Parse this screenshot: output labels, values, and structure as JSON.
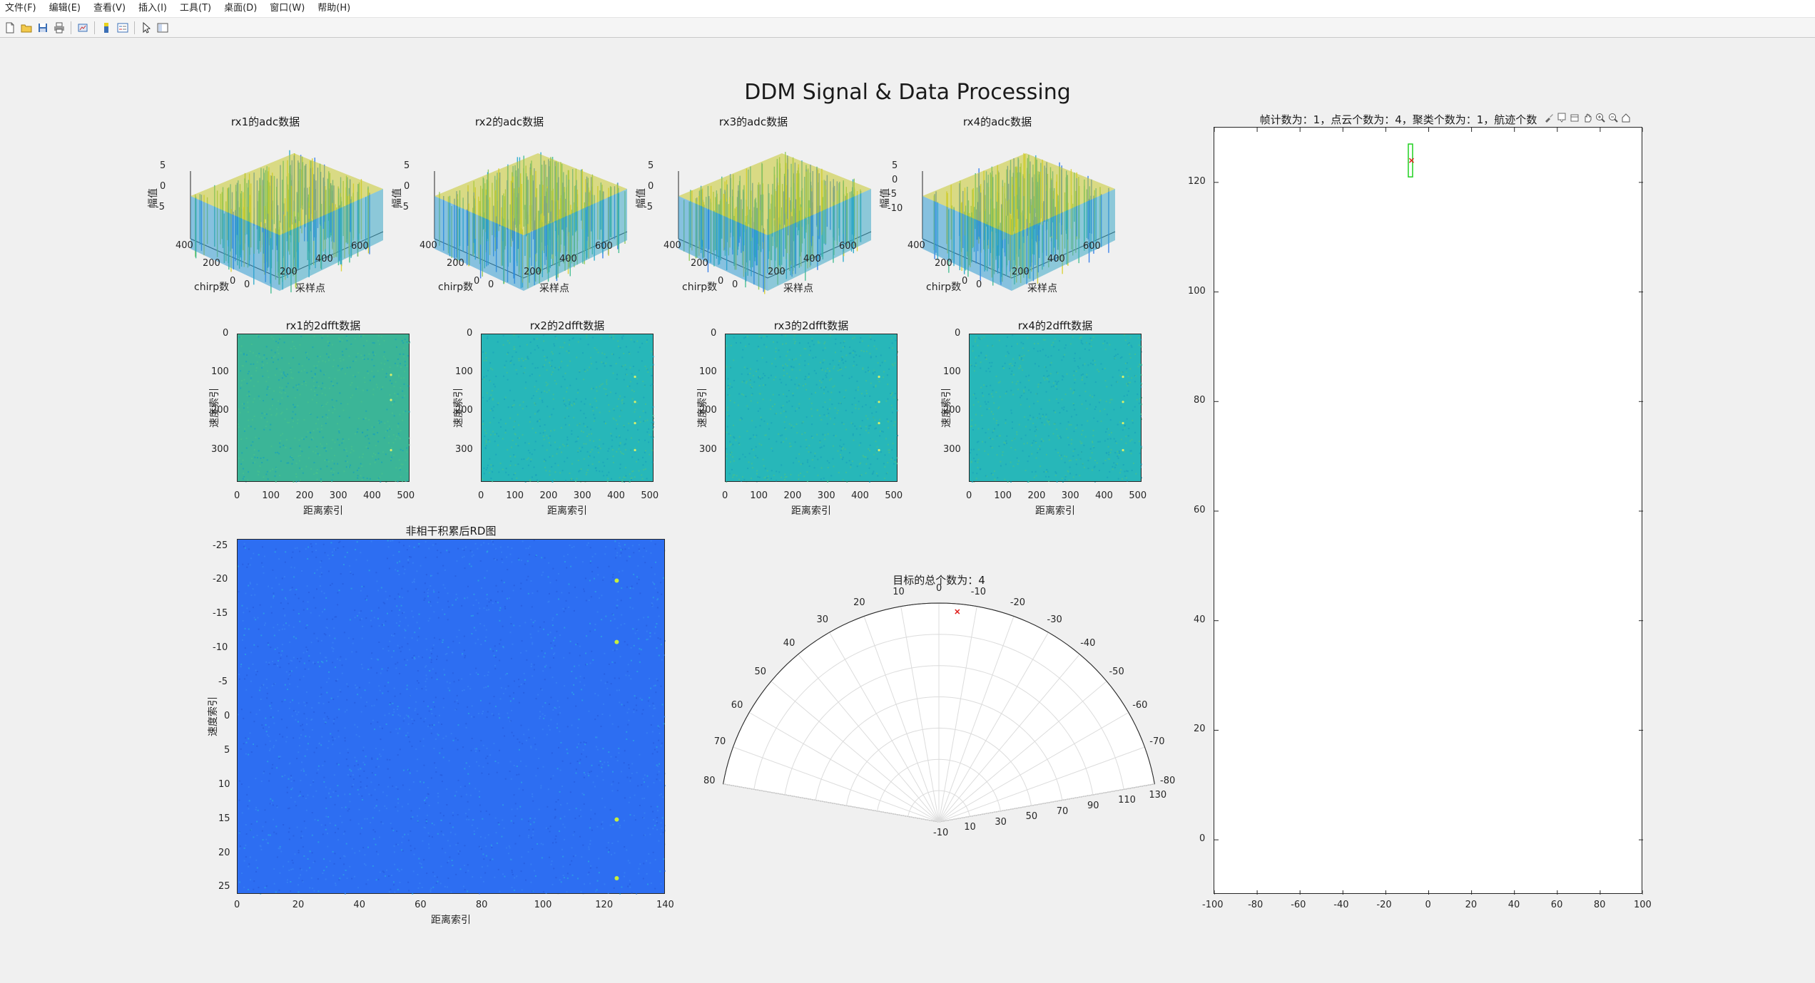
{
  "menu": [
    "文件(F)",
    "编辑(E)",
    "查看(V)",
    "插入(I)",
    "工具(T)",
    "桌面(D)",
    "窗口(W)",
    "帮助(H)"
  ],
  "toolbar_icons": [
    "new-figure-icon",
    "open-file-icon",
    "save-icon",
    "print-icon",
    "link-plot-icon",
    "insert-colorbar-icon",
    "insert-legend-icon",
    "edit-pointer-icon",
    "property-inspector-icon"
  ],
  "figure_title": "DDM Signal & Data Processing",
  "colors": {
    "figure_bg": "#f0f0f0",
    "adc_low": "#1f6fe6",
    "adc_high": "#e8d21d",
    "fft_bg": "#2ab5a8",
    "rd_bg": "#2b6ef0",
    "peak": "#c7ee3c",
    "target": "#e0201e",
    "box": "#1fd01f"
  },
  "chart_data": [
    {
      "type": "surface",
      "name": "adc1",
      "title": "rx1的adc数据",
      "xlabel": "采样点",
      "ylabel": "chirp数",
      "zlabel": "幅值",
      "xticks": [
        "0",
        "200",
        "400",
        "600"
      ],
      "yticks": [
        "0",
        "200",
        "400"
      ],
      "zticks": [
        "5",
        "0",
        "-5"
      ],
      "xlim": [
        0,
        600
      ],
      "ylim": [
        0,
        400
      ],
      "zlim": [
        -8,
        8
      ]
    },
    {
      "type": "surface",
      "name": "adc2",
      "title": "rx2的adc数据",
      "xlabel": "采样点",
      "ylabel": "chirp数",
      "zlabel": "幅值",
      "xticks": [
        "0",
        "200",
        "400",
        "600"
      ],
      "yticks": [
        "0",
        "200",
        "400"
      ],
      "zticks": [
        "5",
        "0",
        "-5"
      ],
      "xlim": [
        0,
        600
      ],
      "ylim": [
        0,
        400
      ],
      "zlim": [
        -8,
        8
      ]
    },
    {
      "type": "surface",
      "name": "adc3",
      "title": "rx3的adc数据",
      "xlabel": "采样点",
      "ylabel": "chirp数",
      "zlabel": "幅值",
      "xticks": [
        "0",
        "200",
        "400",
        "600"
      ],
      "yticks": [
        "0",
        "200",
        "400"
      ],
      "zticks": [
        "5",
        "0",
        "-5"
      ],
      "xlim": [
        0,
        600
      ],
      "ylim": [
        0,
        400
      ],
      "zlim": [
        -8,
        8
      ]
    },
    {
      "type": "surface",
      "name": "adc4",
      "title": "rx4的adc数据",
      "xlabel": "采样点",
      "ylabel": "chirp数",
      "zlabel": "幅值",
      "xticks": [
        "0",
        "200",
        "400",
        "600"
      ],
      "yticks": [
        "0",
        "200",
        "400"
      ],
      "zticks": [
        "5",
        "0",
        "-5",
        "-10"
      ],
      "xlim": [
        0,
        600
      ],
      "ylim": [
        0,
        400
      ],
      "zlim": [
        -10,
        8
      ]
    },
    {
      "type": "heatmap",
      "name": "fft1",
      "title": "rx1的2dfft数据",
      "xlabel": "距离索引",
      "ylabel": "速度索引",
      "xlim": [
        0,
        512
      ],
      "ylim": [
        0,
        384
      ],
      "xticks": [
        "0",
        "100",
        "200",
        "300",
        "400",
        "500"
      ],
      "yticks": [
        "0",
        "100",
        "200",
        "300"
      ],
      "peaks": [
        {
          "x": 455,
          "y": 105
        },
        {
          "x": 455,
          "y": 170
        },
        {
          "x": 455,
          "y": 300
        }
      ]
    },
    {
      "type": "heatmap",
      "name": "fft2",
      "title": "rx2的2dfft数据",
      "xlabel": "距离索引",
      "ylabel": "速度索引",
      "xlim": [
        0,
        512
      ],
      "ylim": [
        0,
        384
      ],
      "xticks": [
        "0",
        "100",
        "200",
        "300",
        "400",
        "500"
      ],
      "yticks": [
        "0",
        "100",
        "200",
        "300"
      ],
      "peaks": [
        {
          "x": 455,
          "y": 110
        },
        {
          "x": 455,
          "y": 175
        },
        {
          "x": 455,
          "y": 230
        },
        {
          "x": 455,
          "y": 300
        }
      ]
    },
    {
      "type": "heatmap",
      "name": "fft3",
      "title": "rx3的2dfft数据",
      "xlabel": "距离索引",
      "ylabel": "速度索引",
      "xlim": [
        0,
        512
      ],
      "ylim": [
        0,
        384
      ],
      "xticks": [
        "0",
        "100",
        "200",
        "300",
        "400",
        "500"
      ],
      "yticks": [
        "0",
        "100",
        "200",
        "300"
      ],
      "peaks": [
        {
          "x": 455,
          "y": 110
        },
        {
          "x": 455,
          "y": 175
        },
        {
          "x": 455,
          "y": 230
        },
        {
          "x": 455,
          "y": 300
        }
      ]
    },
    {
      "type": "heatmap",
      "name": "fft4",
      "title": "rx4的2dfft数据",
      "xlabel": "距离索引",
      "ylabel": "速度索引",
      "xlim": [
        0,
        512
      ],
      "ylim": [
        0,
        384
      ],
      "xticks": [
        "0",
        "100",
        "200",
        "300",
        "400",
        "500"
      ],
      "yticks": [
        "0",
        "100",
        "200",
        "300"
      ],
      "peaks": [
        {
          "x": 455,
          "y": 110
        },
        {
          "x": 455,
          "y": 175
        },
        {
          "x": 455,
          "y": 230
        },
        {
          "x": 455,
          "y": 300
        }
      ]
    },
    {
      "type": "heatmap",
      "name": "rd",
      "title": "非相干积累后RD图",
      "xlabel": "距离索引",
      "ylabel": "速度索引",
      "xlim": [
        0,
        140
      ],
      "ylim": [
        -26,
        26
      ],
      "xticks": [
        "0",
        "20",
        "40",
        "60",
        "80",
        "100",
        "120",
        "140"
      ],
      "yticks": [
        "-25",
        "-20",
        "-15",
        "-10",
        "-5",
        "0",
        "5",
        "10",
        "15",
        "20",
        "25"
      ],
      "peaks": [
        {
          "x": 124,
          "y": -20
        },
        {
          "x": 124,
          "y": -11
        },
        {
          "x": 124,
          "y": 15
        },
        {
          "x": 124,
          "y": 23.6
        }
      ]
    },
    {
      "type": "polar",
      "name": "polar",
      "title": "目标的总个数为：4",
      "theta_ticks": [
        "80",
        "70",
        "60",
        "50",
        "40",
        "30",
        "20",
        "10",
        "0",
        "-10",
        "-20",
        "-30",
        "-40",
        "-50",
        "-60",
        "-70",
        "-80"
      ],
      "r_ticks": [
        "-10",
        "10",
        "30",
        "50",
        "70",
        "90",
        "110",
        "130"
      ],
      "rlim": [
        -10,
        130
      ],
      "points": [
        {
          "angle": -5,
          "r": 125
        }
      ]
    },
    {
      "type": "scatter",
      "name": "track",
      "title": "帧计数为：1，点云个数为：4，聚类个数为：1，航迹个数",
      "xlim": [
        -100,
        100
      ],
      "ylim": [
        -10,
        130
      ],
      "xticks": [
        "-100",
        "-80",
        "-60",
        "-40",
        "-20",
        "0",
        "20",
        "40",
        "60",
        "80",
        "100"
      ],
      "yticks": [
        "0",
        "20",
        "40",
        "60",
        "80",
        "100",
        "120"
      ],
      "points": [
        {
          "x": -8,
          "y": 124
        }
      ],
      "boxes": [
        {
          "x0": -9.5,
          "x1": -7.5,
          "y0": 121,
          "y1": 127
        }
      ]
    }
  ]
}
